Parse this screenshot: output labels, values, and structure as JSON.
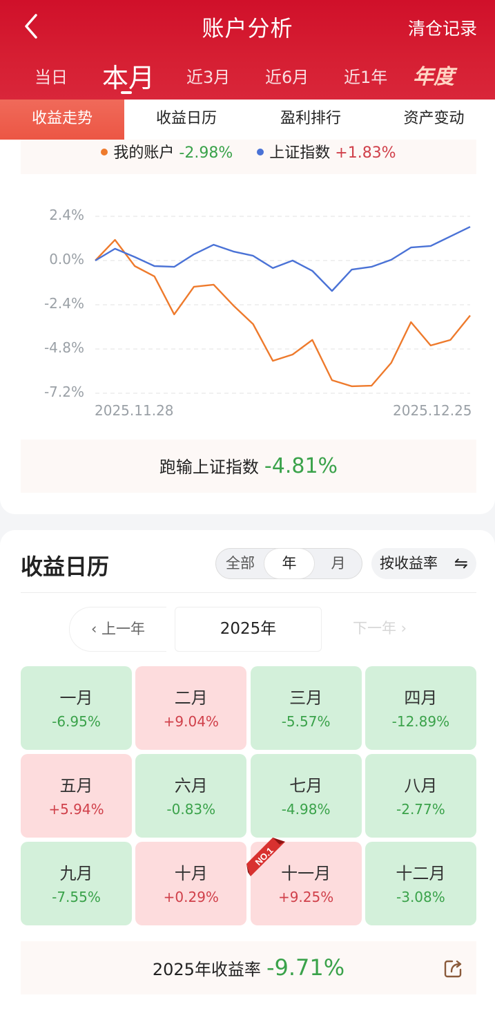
{
  "header": {
    "title": "账户分析",
    "right_action": "清仓记录",
    "back_icon": "chevron-left-icon"
  },
  "periods": [
    {
      "label": "当日",
      "active": false
    },
    {
      "label": "本月",
      "active": true
    },
    {
      "label": "近3月",
      "active": false
    },
    {
      "label": "近6月",
      "active": false
    },
    {
      "label": "近1年",
      "active": false
    },
    {
      "label": "年度",
      "active": false
    }
  ],
  "tabs": [
    {
      "label": "收益走势",
      "active": true
    },
    {
      "label": "收益日历",
      "active": false
    },
    {
      "label": "盈利排行",
      "active": false
    },
    {
      "label": "资产变动",
      "active": false
    }
  ],
  "legend": {
    "account": {
      "label": "我的账户",
      "value": "-2.98%",
      "color": "#ee7a2c"
    },
    "index": {
      "label": "上证指数",
      "value": "+1.83%",
      "color": "#4a72d6"
    }
  },
  "comparison": {
    "label": "跑输上证指数",
    "value": "-4.81%"
  },
  "chart_data": {
    "type": "line",
    "title": "",
    "xlabel": "",
    "ylabel": "",
    "x_start_label": "2025.11.28",
    "x_end_label": "2025.12.25",
    "y_ticks": [
      "2.4%",
      "0.0%",
      "-2.4%",
      "-4.8%",
      "-7.2%"
    ],
    "ylim": [
      -7.2,
      2.4
    ],
    "grid": true,
    "legend_position": "top",
    "x": [
      0,
      1,
      2,
      3,
      4,
      5,
      6,
      7,
      8,
      9,
      10,
      11,
      12,
      13,
      14,
      15,
      16,
      17,
      18,
      19
    ],
    "series": [
      {
        "name": "我的账户",
        "color": "#ee7a2c",
        "values": [
          0.0,
          1.12,
          -0.3,
          -0.86,
          -2.92,
          -1.42,
          -1.31,
          -2.44,
          -3.45,
          -5.44,
          -5.1,
          -4.31,
          -6.49,
          -6.82,
          -6.79,
          -5.55,
          -3.34,
          -4.61,
          -4.31,
          -2.98
        ]
      },
      {
        "name": "上证指数",
        "color": "#4a72d6",
        "values": [
          0.0,
          0.64,
          0.19,
          -0.3,
          -0.34,
          0.34,
          0.86,
          0.49,
          0.26,
          -0.41,
          0.0,
          -0.56,
          -1.65,
          -0.49,
          -0.34,
          0.04,
          0.71,
          0.79,
          1.31,
          1.83
        ]
      }
    ]
  },
  "calendar": {
    "title": "收益日历",
    "segments": [
      {
        "label": "全部",
        "active": false
      },
      {
        "label": "年",
        "active": true
      },
      {
        "label": "月",
        "active": false
      }
    ],
    "sort_label": "按收益率",
    "sort_icon": "swap-icon",
    "prev_year": "上一年",
    "year": "2025年",
    "next_year": "下一年",
    "months": [
      {
        "name": "一月",
        "value": "-6.95%",
        "sign": "neg"
      },
      {
        "name": "二月",
        "value": "+9.04%",
        "sign": "pos"
      },
      {
        "name": "三月",
        "value": "-5.57%",
        "sign": "neg"
      },
      {
        "name": "四月",
        "value": "-12.89%",
        "sign": "neg"
      },
      {
        "name": "五月",
        "value": "+5.94%",
        "sign": "pos"
      },
      {
        "name": "六月",
        "value": "-0.83%",
        "sign": "neg"
      },
      {
        "name": "七月",
        "value": "-4.98%",
        "sign": "neg"
      },
      {
        "name": "八月",
        "value": "-2.77%",
        "sign": "neg"
      },
      {
        "name": "九月",
        "value": "-7.55%",
        "sign": "neg"
      },
      {
        "name": "十月",
        "value": "+0.29%",
        "sign": "pos"
      },
      {
        "name": "十一月",
        "value": "+9.25%",
        "sign": "pos",
        "badge": "NO.1"
      },
      {
        "name": "十二月",
        "value": "-3.08%",
        "sign": "neg"
      }
    ],
    "year_total_label": "2025年收益率",
    "year_total_value": "-9.71%"
  }
}
